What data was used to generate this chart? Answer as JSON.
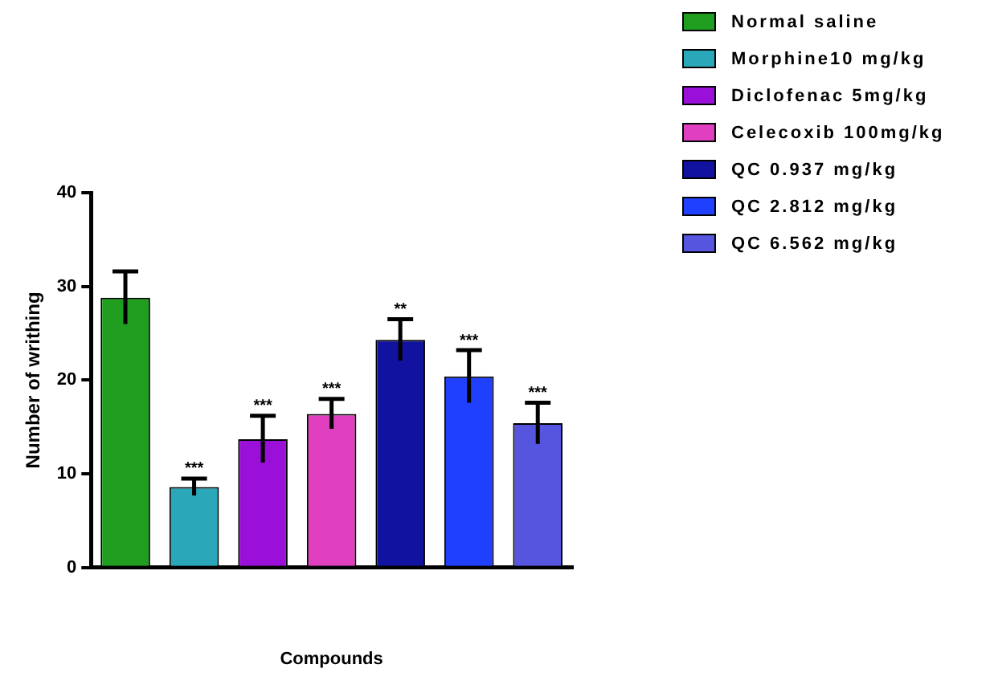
{
  "chart_data": {
    "type": "bar",
    "xlabel": "Compounds",
    "ylabel": "Number of writhing",
    "categories": [
      null,
      null,
      null,
      null,
      null,
      null,
      null
    ],
    "series": [
      {
        "name": "Normal saline",
        "color": "#1f9e1f",
        "values": [
          28.8,
          null,
          null,
          null,
          null,
          null,
          null
        ],
        "errors": [
          2.8,
          null,
          null,
          null,
          null,
          null,
          null
        ]
      },
      {
        "name": "Morphine10 mg/kg",
        "color": "#2aa7b8",
        "values": [
          null,
          8.6,
          null,
          null,
          null,
          null,
          null
        ],
        "errors": [
          null,
          0.9,
          null,
          null,
          null,
          null,
          null
        ],
        "value_labels": [
          null,
          "***",
          null,
          null,
          null,
          null,
          null
        ]
      },
      {
        "name": "Diclofenac 5mg/kg",
        "color": "#9b10d8",
        "values": [
          null,
          null,
          13.7,
          null,
          null,
          null,
          null
        ],
        "errors": [
          null,
          null,
          2.5,
          null,
          null,
          null,
          null
        ],
        "value_labels": [
          null,
          null,
          "***",
          null,
          null,
          null,
          null
        ]
      },
      {
        "name": "Celecoxib 100mg/kg",
        "color": "#e040c0",
        "values": [
          null,
          null,
          null,
          16.4,
          null,
          null,
          null
        ],
        "errors": [
          null,
          null,
          null,
          1.6,
          null,
          null,
          null
        ],
        "value_labels": [
          null,
          null,
          null,
          "***",
          null,
          null,
          null
        ]
      },
      {
        "name": "QC 0.937 mg/kg",
        "color": "#1212a0",
        "values": [
          null,
          null,
          null,
          null,
          24.3,
          null,
          null
        ],
        "errors": [
          null,
          null,
          null,
          null,
          2.2,
          null,
          null
        ],
        "value_labels": [
          null,
          null,
          null,
          null,
          "**",
          null,
          null
        ]
      },
      {
        "name": "QC 2.812 mg/kg",
        "color": "#2040ff",
        "values": [
          null,
          null,
          null,
          null,
          null,
          20.4,
          null
        ],
        "errors": [
          null,
          null,
          null,
          null,
          null,
          2.8,
          null
        ],
        "value_labels": [
          null,
          null,
          null,
          null,
          null,
          "***",
          null
        ]
      },
      {
        "name": "QC 6.562 mg/kg",
        "color": "#5555e0",
        "values": [
          null,
          null,
          null,
          null,
          null,
          null,
          15.4
        ],
        "errors": [
          null,
          null,
          null,
          null,
          null,
          null,
          2.2
        ],
        "value_labels": [
          null,
          null,
          null,
          null,
          null,
          null,
          "***"
        ]
      }
    ],
    "ylim": [
      0,
      40
    ],
    "yticks": [
      0,
      10,
      20,
      30,
      40
    ],
    "grid": false,
    "legend": "top right"
  }
}
